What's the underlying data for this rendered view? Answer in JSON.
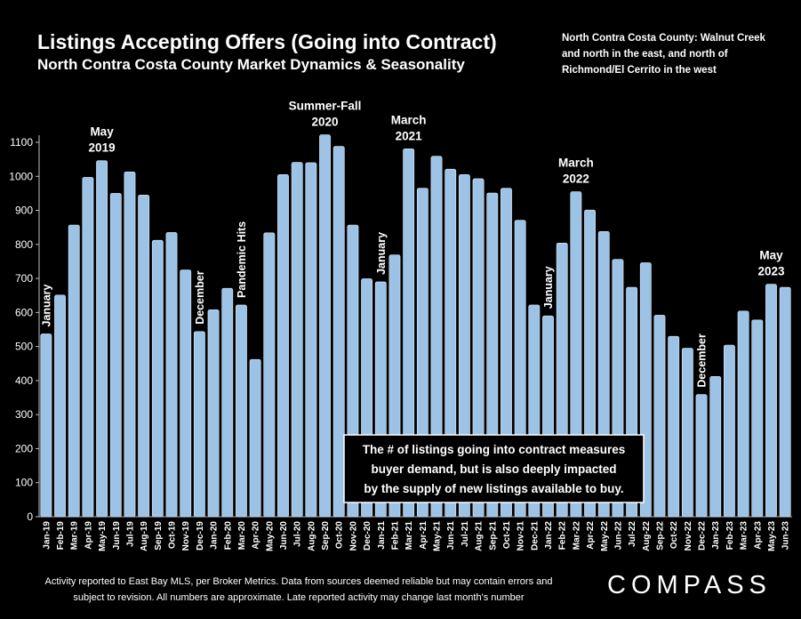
{
  "title": "Listings Accepting Offers (Going into Contract)",
  "subtitle": "North Contra Costa County Market Dynamics & Seasonality",
  "region_note": "North Contra Costa County: Walnut Creek and north in the east, and north of Richmond/El Cerrito in the west",
  "footer_note": "Activity reported to East Bay MLS, per Broker Metrics. Data from sources deemed reliable but may contain errors and subject to revision. All numbers are approximate. Late reported activity may change last month's number",
  "logo_text": "COMPASS",
  "chart_data": {
    "type": "bar",
    "categories": [
      "Jan-19",
      "Feb-19",
      "Mar-19",
      "Apr-19",
      "May-19",
      "Jun-19",
      "Jul-19",
      "Aug-19",
      "Sep-19",
      "Oct-19",
      "Nov-19",
      "Dec-19",
      "Jan-20",
      "Feb-20",
      "Mar-20",
      "Apr-20",
      "May-20",
      "Jun-20",
      "Jul-20",
      "Aug-20",
      "Sep-20",
      "Oct-20",
      "Nov-20",
      "Dec-20",
      "Jan-21",
      "Feb-21",
      "Mar-21",
      "Apr-21",
      "May-21",
      "Jun-21",
      "Jul-21",
      "Aug-21",
      "Sep-21",
      "Oct-21",
      "Nov-21",
      "Dec-21",
      "Jan-22",
      "Feb-22",
      "Mar-22",
      "Apr-22",
      "May-22",
      "Jun-22",
      "Jul-22",
      "Aug-22",
      "Sep-22",
      "Oct-22",
      "Nov-22",
      "Dec-22",
      "Jan-23",
      "Feb-23",
      "Mar-23",
      "Apr-23",
      "May-23",
      "Jun-23"
    ],
    "values": [
      537,
      651,
      857,
      997,
      1046,
      950,
      1013,
      945,
      812,
      835,
      725,
      544,
      608,
      671,
      622,
      462,
      834,
      1005,
      1041,
      1040,
      1122,
      1088,
      857,
      699,
      690,
      769,
      1081,
      965,
      1059,
      1021,
      1005,
      993,
      951,
      965,
      871,
      622,
      590,
      804,
      955,
      901,
      838,
      756,
      674,
      746,
      592,
      530,
      495,
      359,
      412,
      504,
      604,
      578,
      683,
      674
    ],
    "ylim": [
      0,
      1100
    ],
    "yticks": [
      0,
      100,
      200,
      300,
      400,
      500,
      600,
      700,
      800,
      900,
      1000,
      1100
    ],
    "bar_color": "#9cc3e6",
    "grid": false,
    "annotations": [
      {
        "lines": [
          "January"
        ],
        "index": 0,
        "rotate": true
      },
      {
        "lines": [
          "May",
          "2019"
        ],
        "index": 4,
        "rotate": false
      },
      {
        "lines": [
          "December"
        ],
        "index": 11,
        "rotate": true
      },
      {
        "lines": [
          "Pandemic Hits"
        ],
        "index": 14,
        "rotate": true
      },
      {
        "lines": [
          "Summer-Fall",
          "2020"
        ],
        "index": 20,
        "rotate": false
      },
      {
        "lines": [
          "January"
        ],
        "index": 24,
        "rotate": true
      },
      {
        "lines": [
          "March",
          "2021"
        ],
        "index": 26,
        "rotate": false
      },
      {
        "lines": [
          "January"
        ],
        "index": 36,
        "rotate": true
      },
      {
        "lines": [
          "March",
          "2022"
        ],
        "index": 38,
        "rotate": false
      },
      {
        "lines": [
          "December"
        ],
        "index": 47,
        "rotate": true
      },
      {
        "lines": [
          "May",
          "2023"
        ],
        "index": 52,
        "rotate": false
      }
    ],
    "callout": [
      "The # of listings going into contract measures",
      "buyer demand, but is also deeply impacted",
      "by the supply of new listings available to buy."
    ]
  }
}
